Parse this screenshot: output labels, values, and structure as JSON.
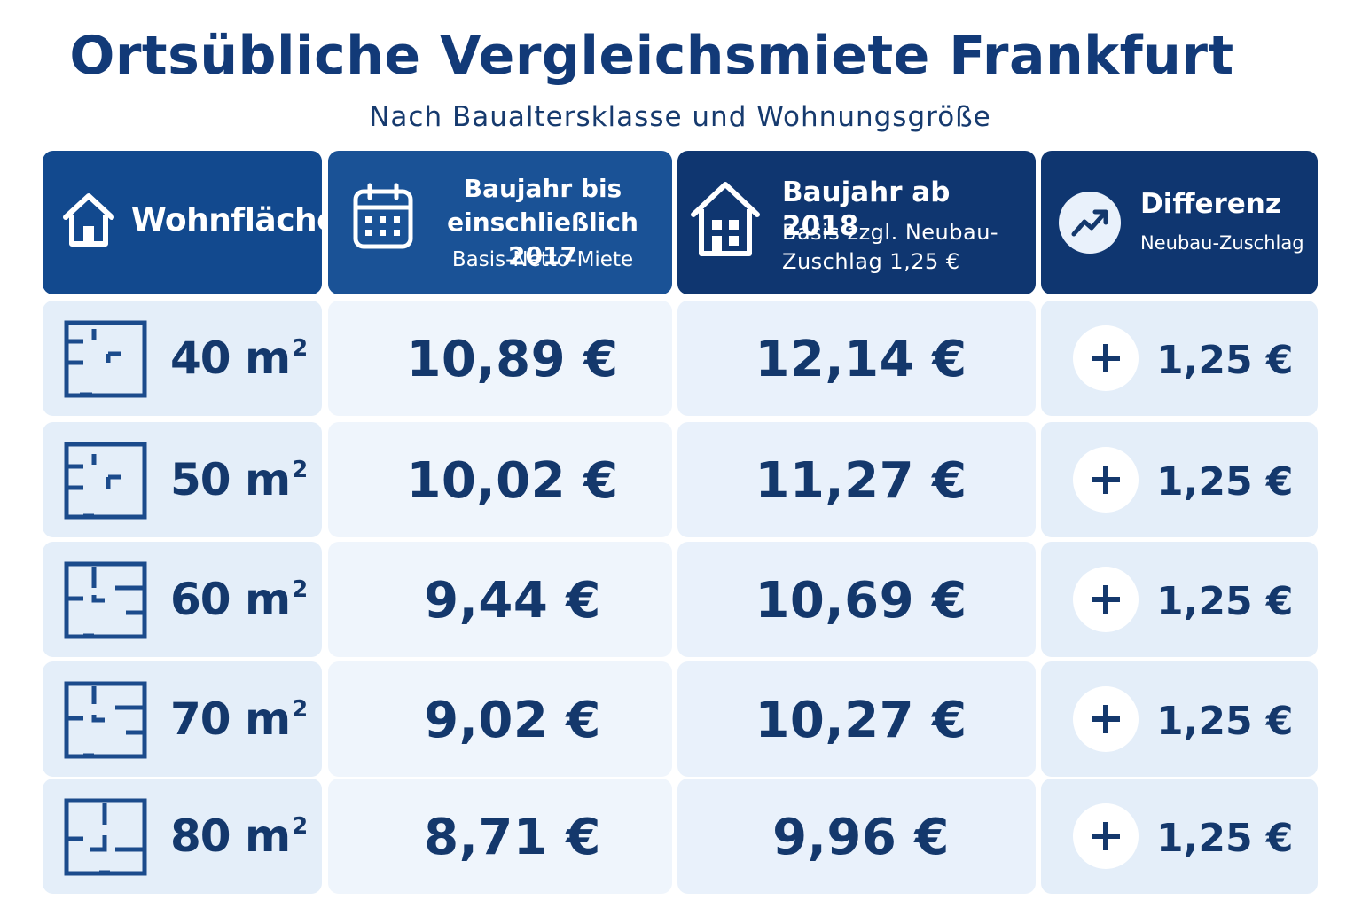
{
  "title": "Ortsübliche Vergleichsmiete Frankfurt",
  "subtitle": "Nach Baualtersklasse und Wohnungsgröße",
  "colors": {
    "header_dark": "#0f3670",
    "header_mid": "#1a5296",
    "cell_light": "#e4eef9",
    "text_dark": "#14386c"
  },
  "icons": {
    "wohnflaeche": "house-icon",
    "bis2017": "calendar-icon",
    "ab2018": "building-icon",
    "differenz": "trend-up-icon",
    "row": "floor-plan-icon",
    "plus": "plus-icon"
  },
  "headers": {
    "wohnflaeche": "Wohnfläche",
    "bis2017_line1": "Baujahr bis",
    "bis2017_line2": "einschließlich 2017",
    "bis2017_sub": "Basis-Netto-Miete",
    "ab2018_title": "Baujahr ab 2018",
    "ab2018_sub1": "Basis zzgl. Neubau-",
    "ab2018_sub2": "Zuschlag 1,25 €",
    "diff_title": "Differenz",
    "diff_sub": "Neubau-Zuschlag"
  },
  "chart_data": {
    "type": "table",
    "title": "Ortsübliche Vergleichsmiete Frankfurt",
    "subtitle": "Nach Baualtersklasse und Wohnungsgröße",
    "columns": [
      "Wohnfläche",
      "Baujahr bis einschließlich 2017",
      "Baujahr ab 2018",
      "Differenz"
    ],
    "rows": [
      {
        "area": "40",
        "unit": "m",
        "sup": "2",
        "bis2017": "10,89 €",
        "ab2018": "12,14 €",
        "diff": "1,25 €"
      },
      {
        "area": "50",
        "unit": "m",
        "sup": "2",
        "bis2017": "10,02 €",
        "ab2018": "11,27 €",
        "diff": "1,25 €"
      },
      {
        "area": "60",
        "unit": "m",
        "sup": "2",
        "bis2017": "9,44 €",
        "ab2018": "10,69 €",
        "diff": "1,25 €"
      },
      {
        "area": "70",
        "unit": "m",
        "sup": "2",
        "bis2017": "9,02 €",
        "ab2018": "10,27 €",
        "diff": "1,25 €"
      },
      {
        "area": "80",
        "unit": "m",
        "sup": "2",
        "bis2017": "8,71 €",
        "ab2018": "9,96 €",
        "diff": "1,25 €"
      }
    ]
  }
}
